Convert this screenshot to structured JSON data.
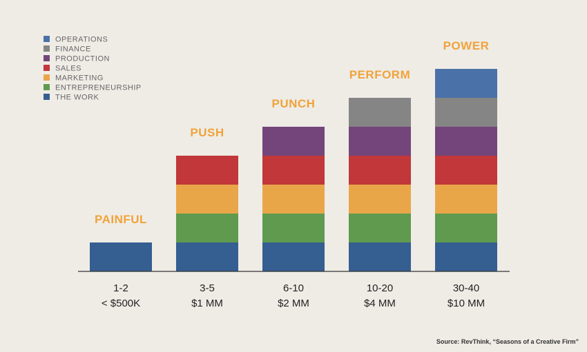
{
  "chart_data": {
    "type": "bar",
    "stacked": true,
    "categories": [
      "1-2",
      "3-5",
      "6-10",
      "10-20",
      "30-40"
    ],
    "category_sublabels": [
      "< $500K",
      "$1 MM",
      "$2 MM",
      "$4 MM",
      "$10 MM"
    ],
    "stage_labels": [
      "PAINFUL",
      "PUSH",
      "PUNCH",
      "PERFORM",
      "POWER"
    ],
    "series": [
      {
        "name": "THE WORK",
        "color": "#355e91",
        "values": [
          1,
          1,
          1,
          1,
          1
        ]
      },
      {
        "name": "ENTREPRENEURSHIP",
        "color": "#5f9a4e",
        "values": [
          0,
          1,
          1,
          1,
          1
        ]
      },
      {
        "name": "MARKETING",
        "color": "#e9a649",
        "values": [
          0,
          1,
          1,
          1,
          1
        ]
      },
      {
        "name": "SALES",
        "color": "#c1373a",
        "values": [
          0,
          1,
          1,
          1,
          1
        ]
      },
      {
        "name": "PRODUCTION",
        "color": "#74457b",
        "values": [
          0,
          0,
          1,
          1,
          1
        ]
      },
      {
        "name": "FINANCE",
        "color": "#858585",
        "values": [
          0,
          0,
          0,
          1,
          1
        ]
      },
      {
        "name": "OPERATIONS",
        "color": "#4a71a8",
        "values": [
          0,
          0,
          0,
          0,
          1
        ]
      }
    ],
    "legend_order": [
      "OPERATIONS",
      "FINANCE",
      "PRODUCTION",
      "SALES",
      "MARKETING",
      "ENTREPRENEURSHIP",
      "THE WORK"
    ],
    "legend_position": "top-left",
    "ylim": [
      0,
      7
    ],
    "grid": false,
    "title": "",
    "xlabel": "",
    "ylabel": ""
  },
  "source": "Source: RevThink, “Seasons of a Creative Firm”",
  "colors": {
    "background": "#efece6",
    "stage_label": "#f0a33a",
    "axis": "#333333"
  }
}
